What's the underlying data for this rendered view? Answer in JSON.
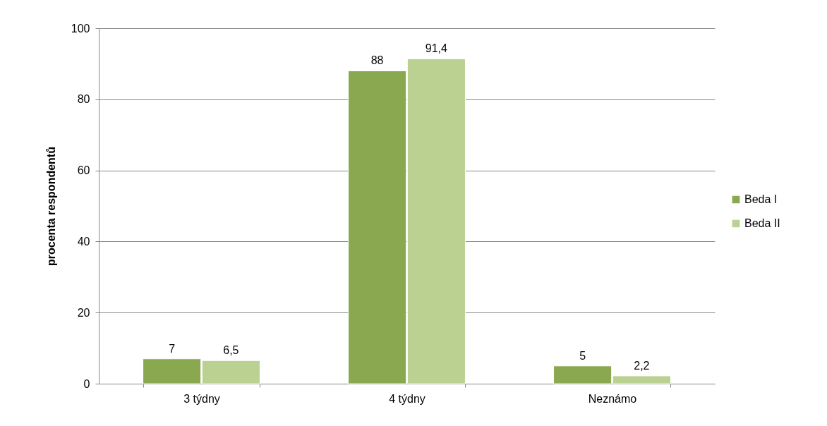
{
  "chart_data": {
    "type": "bar",
    "ylabel": "procenta respondentů",
    "categories": [
      "3 týdny",
      "4 týdny",
      "Neznámo"
    ],
    "series": [
      {
        "name": "Beda I",
        "color": "#8aa84f",
        "values": [
          7,
          88,
          5
        ],
        "value_labels": [
          "7",
          "88",
          "5"
        ]
      },
      {
        "name": "Beda II",
        "color": "#bad191",
        "values": [
          6.5,
          91.4,
          2.2
        ],
        "value_labels": [
          "6,5",
          "91,4",
          "2,2"
        ]
      }
    ],
    "ylim": [
      0,
      100
    ],
    "yticks": [
      0,
      20,
      40,
      60,
      80,
      100
    ],
    "grid": "y",
    "legend": "right"
  }
}
